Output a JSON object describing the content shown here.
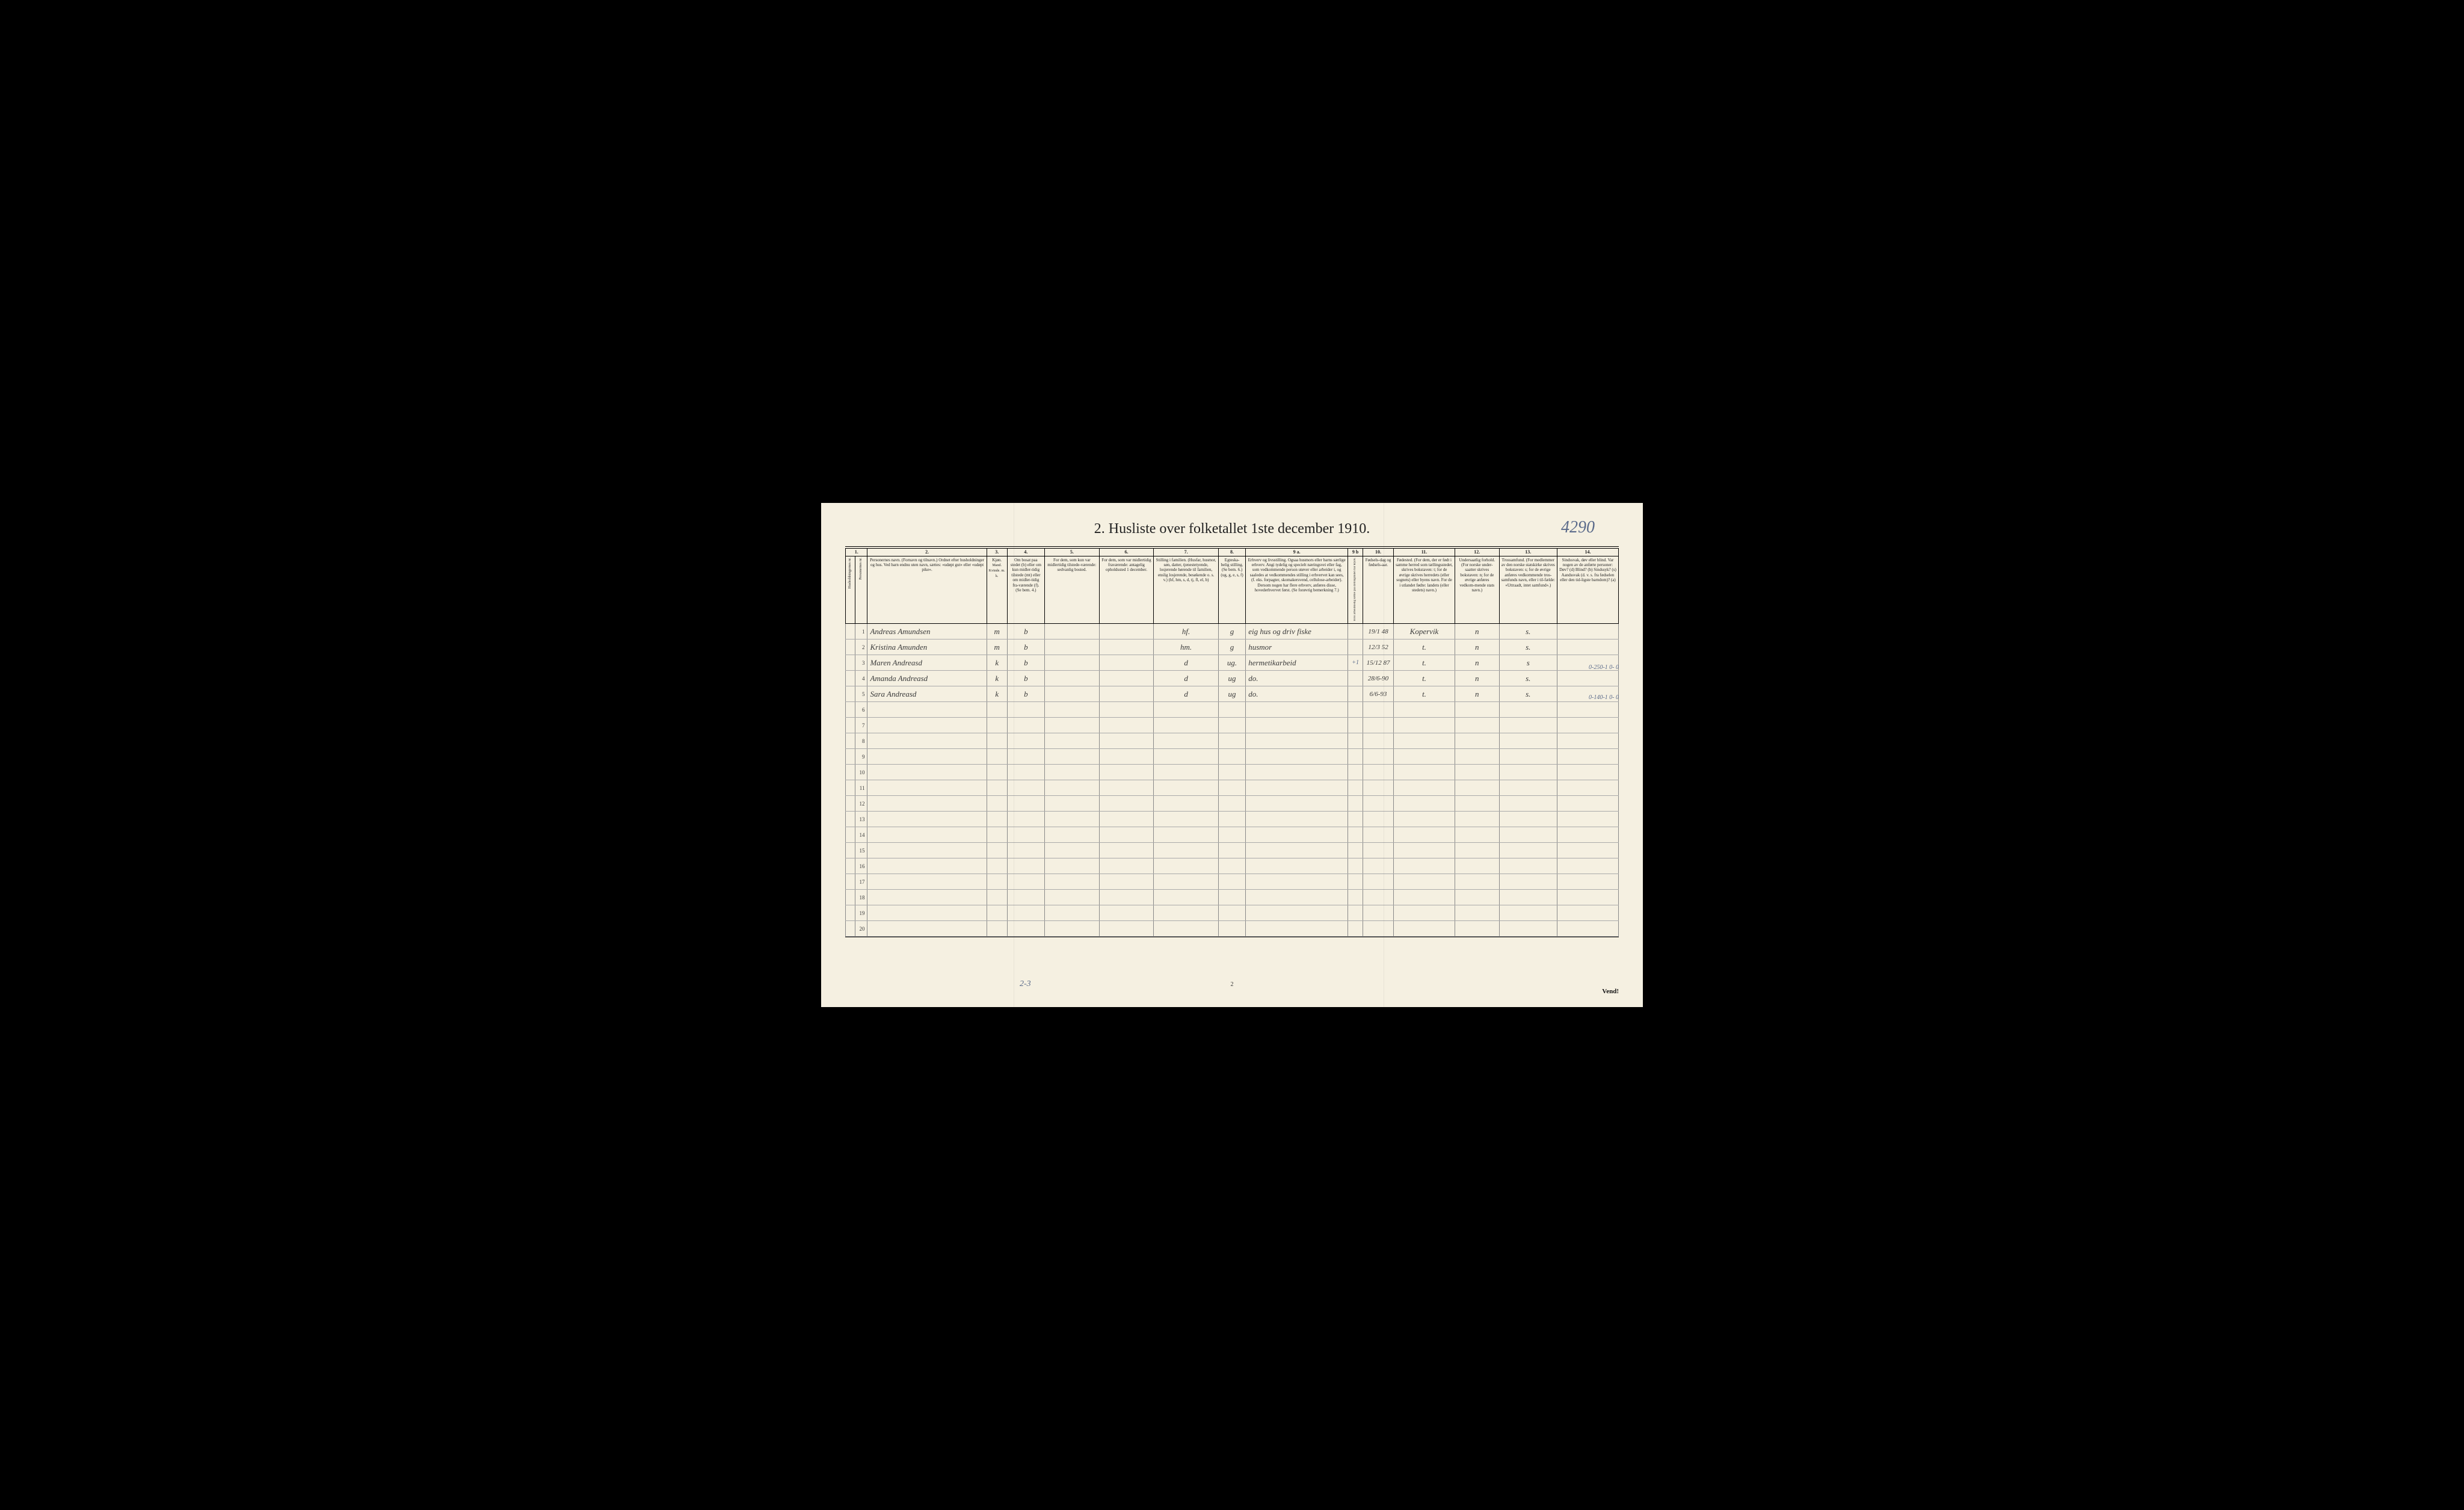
{
  "document_id_handwritten": "4290",
  "title": "2.  Husliste over folketallet 1ste december 1910.",
  "column_numbers": [
    "1.",
    "2.",
    "3.",
    "4.",
    "5.",
    "6.",
    "7.",
    "8.",
    "9 a.",
    "9 b",
    "10.",
    "11.",
    "12.",
    "13.",
    "14."
  ],
  "headers": {
    "c1": "Husholdningernes nr.",
    "c1b": "Personernes nr.",
    "c2": "Personernes navn.\n(Fornavn og tilnavn.)\nOrdnet efter husholdninger og hus.\nVed barn endnu uten navn, sættes: «udøpt gut» eller «udøpt pike».",
    "c3": "Kjøn.",
    "c3_sub": "Mand.  Kvinde.\nm.  k.",
    "c4": "Om bosat paa stedet (b) eller om kun midler-tidig tilstede (mt) eller om midler-tidig fra-værende (f). (Se bem. 4.)",
    "c5": "For dem, som kun var midlertidig tilstede-værende:\nsedvanlig bosted.",
    "c6": "For dem, som var midlertidig fraværende:\nantagelig opholdssted 1 december.",
    "c7": "Stilling i familien.\n(Husfar, husmor, søn, datter, tjenestetyende, losjerende hørende til familien, enslig losjerende, besøkende o. s. v.)\n(hf, hm, s, d, tj, fl, el, b)",
    "c8": "Egteska-belig stilling.\n(Se bem. 6.)\n(ug, g, e, s, f)",
    "c9a": "Erhverv og livsstilling.\nOgsaa husmors eller barns særlige erhverv. Angi tydelig og specielt næringsvei eller fag, som vedkommende person utøver eller arbeider i, og saaledes at vedkommendes stilling i erhvervet kan sees, (f. eks. forpagter, skomakersvend, cellulose-arbeider). Dersom nogen har flere erhverv, anføres disse, hovederhvervet først.\n(Se forøvrig bemerkning 7.)",
    "c9b": "Hvis arbeidsledig sættes paa tællingstiden har kryds.",
    "c10": "Fødsels-dag\nog\nfødsels-aar.",
    "c11": "Fødested.\n(For dem, der er født i samme herred som tællingsstedet, skrives bokstaven: t; for de øvrige skrives herredets (eller sognets) eller byens navn. For de i utlandet fødte: landets (eller stedets) navn.)",
    "c12": "Undersaatlig forhold.\n(For norske under-saatter skrives bokstaven: n; for de øvrige anføres vedkom-mende stats navn.)",
    "c13": "Trossamfund.\n(For medlemmer av den norske statskirke skrives bokstaven: s; for de øvrige anføres vedkommende tros-samfunds navn, eller i til-fælde: «Uttraadt, intet samfund».)",
    "c14": "Sindssvak, døv eller blind.\nVar nogen av de anførte personer:\nDøv? (d)\nBlind? (b)\nSindssyk? (s)\nAandssvak (d. v. s. fra fødselen eller den tid-ligste barndom)? (a)"
  },
  "rows": [
    {
      "n": "1",
      "name": "Andreas Amundsen",
      "sex": "m",
      "res": "b",
      "fam": "hf.",
      "mar": "g",
      "occ": "eig hus og driv fiske",
      "birth": "19/1 48",
      "place": "Kopervik",
      "nat": "n",
      "rel": "s.",
      "note": "0-250-1  0- 0"
    },
    {
      "n": "2",
      "name": "Kristina Amunden",
      "sex": "m",
      "res": "b",
      "fam": "hm.",
      "mar": "g",
      "occ": "husmor",
      "birth": "12/3 52",
      "place": "t.",
      "nat": "n",
      "rel": "s.",
      "note": ""
    },
    {
      "n": "3",
      "name": "Maren Andreasd",
      "sex": "k",
      "res": "b",
      "fam": "d",
      "mar": "ug.",
      "occ": "hermetikarbeid",
      "birth": "15/12 87",
      "place": "t.",
      "nat": "n",
      "rel": "s",
      "note": "0-140-1  0- 0",
      "plus": "+1"
    },
    {
      "n": "4",
      "name": "Amanda Andreasd",
      "sex": "k",
      "res": "b",
      "fam": "d",
      "mar": "ug",
      "occ": "do.",
      "birth": "28/6-90",
      "place": "t.",
      "nat": "n",
      "rel": "s.",
      "note": ""
    },
    {
      "n": "5",
      "name": "Sara Andreasd",
      "sex": "k",
      "res": "b",
      "fam": "d",
      "mar": "ug",
      "occ": "do.",
      "birth": "6/6-93",
      "place": "t.",
      "nat": "n",
      "rel": "s.",
      "note": ""
    }
  ],
  "empty_rows": [
    "6",
    "7",
    "8",
    "9",
    "10",
    "11",
    "12",
    "13",
    "14",
    "15",
    "16",
    "17",
    "18",
    "19",
    "20"
  ],
  "footer_note": "2-3",
  "page_number": "2",
  "vend": "Vend!",
  "margin_notes": {
    "plus1_label": "+1"
  }
}
